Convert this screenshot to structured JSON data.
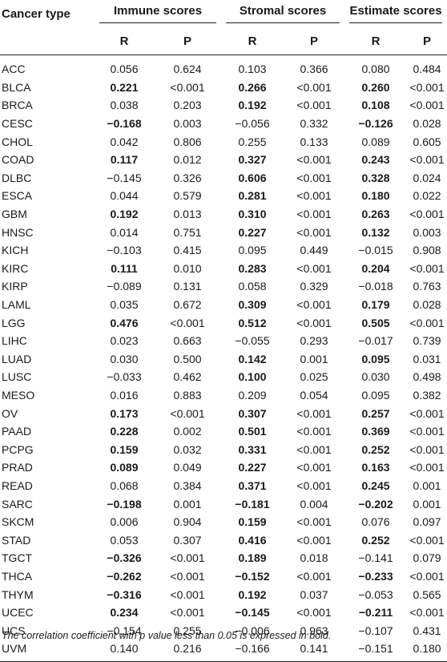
{
  "header": {
    "cancer_type": "Cancer type",
    "groups": [
      "Immune scores",
      "Stromal scores",
      "Estimate scores"
    ],
    "sub": [
      "R",
      "P",
      "R",
      "P",
      "R",
      "P"
    ]
  },
  "rows": [
    {
      "name": "ACC",
      "v": [
        "0.056",
        "0.624",
        "0.103",
        "0.366",
        "0.080",
        "0.484"
      ],
      "b": [
        0,
        0,
        0,
        0,
        0,
        0
      ]
    },
    {
      "name": "BLCA",
      "v": [
        "0.221",
        "<0.001",
        "0.266",
        "<0.001",
        "0.260",
        "<0.001"
      ],
      "b": [
        1,
        0,
        1,
        0,
        1,
        0
      ]
    },
    {
      "name": "BRCA",
      "v": [
        "0.038",
        "0.203",
        "0.192",
        "<0.001",
        "0.108",
        "<0.001"
      ],
      "b": [
        0,
        0,
        1,
        0,
        1,
        0
      ]
    },
    {
      "name": "CESC",
      "v": [
        "−0.168",
        "0.003",
        "−0.056",
        "0.332",
        "−0.126",
        "0.028"
      ],
      "b": [
        1,
        0,
        0,
        0,
        1,
        0
      ]
    },
    {
      "name": "CHOL",
      "v": [
        "0.042",
        "0.806",
        "0.255",
        "0.133",
        "0.089",
        "0.605"
      ],
      "b": [
        0,
        0,
        0,
        0,
        0,
        0
      ]
    },
    {
      "name": "COAD",
      "v": [
        "0.117",
        "0.012",
        "0.327",
        "<0.001",
        "0.243",
        "<0.001"
      ],
      "b": [
        1,
        0,
        1,
        0,
        1,
        0
      ]
    },
    {
      "name": "DLBC",
      "v": [
        "−0.145",
        "0.326",
        "0.606",
        "<0.001",
        "0.328",
        "0.024"
      ],
      "b": [
        0,
        0,
        1,
        0,
        1,
        0
      ]
    },
    {
      "name": "ESCA",
      "v": [
        "0.044",
        "0.579",
        "0.281",
        "<0.001",
        "0.180",
        "0.022"
      ],
      "b": [
        0,
        0,
        1,
        0,
        1,
        0
      ]
    },
    {
      "name": "GBM",
      "v": [
        "0.192",
        "0.013",
        "0.310",
        "<0.001",
        "0.263",
        "<0.001"
      ],
      "b": [
        1,
        0,
        1,
        0,
        1,
        0
      ]
    },
    {
      "name": "HNSC",
      "v": [
        "0.014",
        "0.751",
        "0.227",
        "<0.001",
        "0.132",
        "0.003"
      ],
      "b": [
        0,
        0,
        1,
        0,
        1,
        0
      ]
    },
    {
      "name": "KICH",
      "v": [
        "−0.103",
        "0.415",
        "0.095",
        "0.449",
        "−0.015",
        "0.908"
      ],
      "b": [
        0,
        0,
        0,
        0,
        0,
        0
      ]
    },
    {
      "name": "KIRC",
      "v": [
        "0.111",
        "0.010",
        "0.283",
        "<0.001",
        "0.204",
        "<0.001"
      ],
      "b": [
        1,
        0,
        1,
        0,
        1,
        0
      ]
    },
    {
      "name": "KIRP",
      "v": [
        "−0.089",
        "0.131",
        "0.058",
        "0.329",
        "−0.018",
        "0.763"
      ],
      "b": [
        0,
        0,
        0,
        0,
        0,
        0
      ]
    },
    {
      "name": "LAML",
      "v": [
        "0.035",
        "0.672",
        "0.309",
        "<0.001",
        "0.179",
        "0.028"
      ],
      "b": [
        0,
        0,
        1,
        0,
        1,
        0
      ]
    },
    {
      "name": "LGG",
      "v": [
        "0.476",
        "<0.001",
        "0.512",
        "<0.001",
        "0.505",
        "<0.001"
      ],
      "b": [
        1,
        0,
        1,
        0,
        1,
        0
      ]
    },
    {
      "name": "LIHC",
      "v": [
        "0.023",
        "0.663",
        "−0.055",
        "0.293",
        "−0.017",
        "0.739"
      ],
      "b": [
        0,
        0,
        0,
        0,
        0,
        0
      ]
    },
    {
      "name": "LUAD",
      "v": [
        "0.030",
        "0.500",
        "0.142",
        "0.001",
        "0.095",
        "0.031"
      ],
      "b": [
        0,
        0,
        1,
        0,
        1,
        0
      ]
    },
    {
      "name": "LUSC",
      "v": [
        "−0.033",
        "0.462",
        "0.100",
        "0.025",
        "0.030",
        "0.498"
      ],
      "b": [
        0,
        0,
        1,
        0,
        0,
        0
      ]
    },
    {
      "name": "MESO",
      "v": [
        "0.016",
        "0.883",
        "0.209",
        "0.054",
        "0.095",
        "0.382"
      ],
      "b": [
        0,
        0,
        0,
        0,
        0,
        0
      ]
    },
    {
      "name": "OV",
      "v": [
        "0.173",
        "<0.001",
        "0.307",
        "<0.001",
        "0.257",
        "<0.001"
      ],
      "b": [
        1,
        0,
        1,
        0,
        1,
        0
      ]
    },
    {
      "name": "PAAD",
      "v": [
        "0.228",
        "0.002",
        "0.501",
        "<0.001",
        "0.369",
        "<0.001"
      ],
      "b": [
        1,
        0,
        1,
        0,
        1,
        0
      ]
    },
    {
      "name": "PCPG",
      "v": [
        "0.159",
        "0.032",
        "0.331",
        "<0.001",
        "0.252",
        "<0.001"
      ],
      "b": [
        1,
        0,
        1,
        0,
        1,
        0
      ]
    },
    {
      "name": "PRAD",
      "v": [
        "0.089",
        "0.049",
        "0.227",
        "<0.001",
        "0.163",
        "<0.001"
      ],
      "b": [
        1,
        0,
        1,
        0,
        1,
        0
      ]
    },
    {
      "name": "READ",
      "v": [
        "0.068",
        "0.384",
        "0.371",
        "<0.001",
        "0.245",
        "0.001"
      ],
      "b": [
        0,
        0,
        1,
        0,
        1,
        0
      ]
    },
    {
      "name": "SARC",
      "v": [
        "−0.198",
        "0.001",
        "−0.181",
        "0.004",
        "−0.202",
        "0.001"
      ],
      "b": [
        1,
        0,
        1,
        0,
        1,
        0
      ]
    },
    {
      "name": "SKCM",
      "v": [
        "0.006",
        "0.904",
        "0.159",
        "<0.001",
        "0.076",
        "0.097"
      ],
      "b": [
        0,
        0,
        1,
        0,
        0,
        0
      ]
    },
    {
      "name": "STAD",
      "v": [
        "0.053",
        "0.307",
        "0.416",
        "<0.001",
        "0.252",
        "<0.001"
      ],
      "b": [
        0,
        0,
        1,
        0,
        1,
        0
      ]
    },
    {
      "name": "TGCT",
      "v": [
        "−0.326",
        "<0.001",
        "0.189",
        "0.018",
        "−0.141",
        "0.079"
      ],
      "b": [
        1,
        0,
        1,
        0,
        0,
        0
      ]
    },
    {
      "name": "THCA",
      "v": [
        "−0.262",
        "<0.001",
        "−0.152",
        "<0.001",
        "−0.233",
        "<0.001"
      ],
      "b": [
        1,
        0,
        1,
        0,
        1,
        0
      ]
    },
    {
      "name": "THYM",
      "v": [
        "−0.316",
        "<0.001",
        "0.192",
        "0.037",
        "−0.053",
        "0.565"
      ],
      "b": [
        1,
        0,
        1,
        0,
        0,
        0
      ]
    },
    {
      "name": "UCEC",
      "v": [
        "0.234",
        "<0.001",
        "−0.145",
        "<0.001",
        "−0.211",
        "<0.001"
      ],
      "b": [
        1,
        0,
        1,
        0,
        1,
        0
      ]
    },
    {
      "name": "UCS",
      "v": [
        "−0.154",
        "0.255",
        "−0.006",
        "0.963",
        "−0.107",
        "0.431"
      ],
      "b": [
        0,
        0,
        0,
        0,
        0,
        0
      ]
    },
    {
      "name": "UVM",
      "v": [
        "0.140",
        "0.216",
        "−0.166",
        "0.141",
        "−0.151",
        "0.180"
      ],
      "b": [
        0,
        0,
        0,
        0,
        0,
        0
      ]
    }
  ],
  "footnote": "The correlation coefficient with p value less than 0.05 is expressed in bold."
}
